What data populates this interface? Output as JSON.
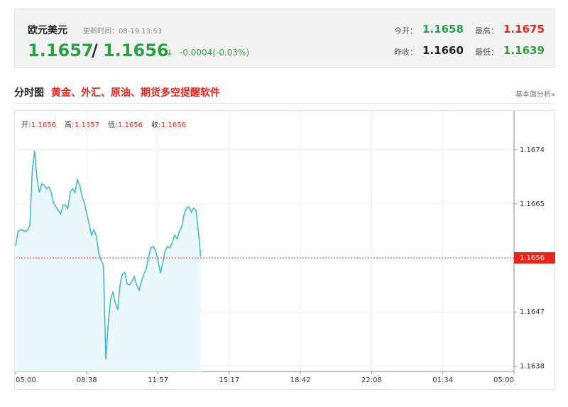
{
  "header": {
    "name": "欧元美元",
    "update_time": "更新时间：08-19 13:53",
    "price_bid": "1.1657",
    "separator": "/",
    "price_ask": "1.1656",
    "arrow": "↓",
    "change": "-0.0004(-0.03%)",
    "stats": [
      {
        "label": "今开：",
        "value": "1.1658"
      },
      {
        "label": "最高：",
        "value": "1.1675"
      },
      {
        "label": "昨收：",
        "value": "1.1660"
      },
      {
        "label": "最低：",
        "value": "1.1639"
      }
    ]
  },
  "section": {
    "title": "分时图",
    "promo": "黄金、外汇、原油、期货多空提醒软件",
    "link": "基本面分析»"
  },
  "ohlc": [
    {
      "label": "开:",
      "value": "1.1656"
    },
    {
      "label": "高:",
      "value": "1.1657"
    },
    {
      "label": "低:",
      "value": "1.1656"
    },
    {
      "label": "收:",
      "value": "1.1656"
    }
  ],
  "chart_data": {
    "type": "line",
    "categories": [
      "05:00",
      null,
      null,
      null,
      null,
      null,
      null,
      null,
      null,
      null,
      null,
      null,
      null,
      null,
      null,
      null,
      null,
      null,
      null,
      null,
      null,
      null,
      null,
      null,
      null,
      null,
      null,
      null,
      null,
      null,
      "08:38",
      null,
      null,
      null,
      null,
      null,
      null,
      null,
      null,
      null,
      null,
      null,
      null,
      null,
      null,
      null,
      null,
      null,
      null,
      null,
      null,
      null,
      null,
      null,
      null,
      null,
      null,
      null,
      null,
      null,
      "11:57",
      null,
      null,
      null,
      null,
      null,
      null,
      null,
      null,
      null,
      null,
      null,
      null,
      null,
      null,
      null,
      null,
      null,
      null,
      null,
      null,
      null,
      null,
      null,
      null,
      null,
      null,
      null,
      null,
      null,
      "15:17",
      null,
      null,
      null,
      null,
      null,
      null,
      null,
      null,
      null,
      null,
      null,
      null,
      null,
      null,
      null,
      null,
      null,
      null,
      null,
      null,
      null,
      null,
      null,
      null,
      null,
      null,
      null,
      null,
      null,
      "18:42",
      null,
      null,
      null,
      null,
      null,
      null,
      null,
      null,
      null,
      null,
      null,
      null,
      null,
      null,
      null,
      null,
      null,
      null,
      null,
      null,
      null,
      null,
      null,
      null,
      null,
      null,
      null,
      null,
      null,
      "22:08",
      null,
      null,
      null,
      null,
      null,
      null,
      null,
      null,
      null,
      null,
      null,
      null,
      null,
      null,
      null,
      null,
      null,
      null,
      null,
      null,
      null,
      null,
      null,
      null,
      null,
      null,
      null,
      null,
      null,
      "01:34",
      null,
      null,
      null,
      null,
      null,
      null,
      null,
      null,
      null,
      null,
      null,
      null,
      null,
      null,
      null,
      null,
      null,
      null,
      null,
      null,
      null,
      null,
      null,
      null,
      null,
      null,
      null,
      null,
      null,
      "05:00"
    ],
    "series": [
      {
        "color": "#3cb4cf",
        "fill": "#eaf7fb",
        "values": [
          1.1658,
          1.16604,
          1.16607,
          1.16606,
          1.16604,
          1.16606,
          1.16615,
          1.16704,
          1.16738,
          1.16693,
          1.16669,
          1.16683,
          1.16681,
          1.16675,
          1.16678,
          1.16669,
          1.16651,
          1.16645,
          1.16639,
          1.16633,
          1.16648,
          1.16648,
          1.16642,
          1.16669,
          1.16675,
          1.16669,
          1.1669,
          1.16681,
          1.16663,
          1.16651,
          1.16633,
          1.16616,
          1.16598,
          1.16607,
          1.16596,
          1.16568,
          1.16556,
          1.16548,
          1.16391,
          1.1645,
          1.16491,
          1.16503,
          1.16485,
          1.16474,
          1.16515,
          1.16533,
          1.16536,
          1.16517,
          1.16515,
          1.16521,
          1.16529,
          1.16515,
          1.16506,
          1.16521,
          1.16533,
          1.16541,
          1.16562,
          1.16577,
          1.16579,
          1.16572,
          1.16556,
          1.16535,
          1.16551,
          1.16572,
          1.16579,
          1.16577,
          1.16586,
          1.16598,
          1.16592,
          1.16604,
          1.16612,
          1.16633,
          1.16643,
          1.16645,
          1.16636,
          1.16643,
          1.16639,
          1.16604,
          1.16562,
          null,
          null,
          null,
          null,
          null,
          null,
          null,
          null,
          null,
          null,
          null,
          null,
          null,
          null,
          null,
          null,
          null,
          null,
          null,
          null,
          null,
          null,
          null,
          null,
          null,
          null,
          null,
          null,
          null,
          null,
          null,
          null,
          null,
          null,
          null,
          null,
          null,
          null,
          null,
          null,
          null,
          null,
          null,
          null,
          null,
          null,
          null,
          null,
          null,
          null,
          null,
          null,
          null,
          null,
          null,
          null,
          null,
          null,
          null,
          null,
          null,
          null,
          null,
          null,
          null,
          null,
          null,
          null,
          null,
          null,
          null,
          null,
          null,
          null,
          null,
          null,
          null,
          null,
          null,
          null,
          null,
          null,
          null,
          null,
          null,
          null,
          null,
          null,
          null,
          null,
          null,
          null,
          null,
          null,
          null,
          null,
          null,
          null,
          null,
          null,
          null,
          null,
          null,
          null,
          null,
          null,
          null,
          null,
          null,
          null,
          null,
          null,
          null,
          null,
          null,
          null,
          null,
          null,
          null,
          null,
          null,
          null,
          null,
          null,
          null,
          null,
          null,
          null,
          null,
          null,
          null,
          null
        ]
      }
    ],
    "ylim": [
      1.16371,
      1.168
    ],
    "yticks": [
      1.1674,
      1.1665,
      1.1647,
      1.1638
    ],
    "last_price": 1.1656,
    "last_price_color": "#e8251c",
    "grid": true
  }
}
